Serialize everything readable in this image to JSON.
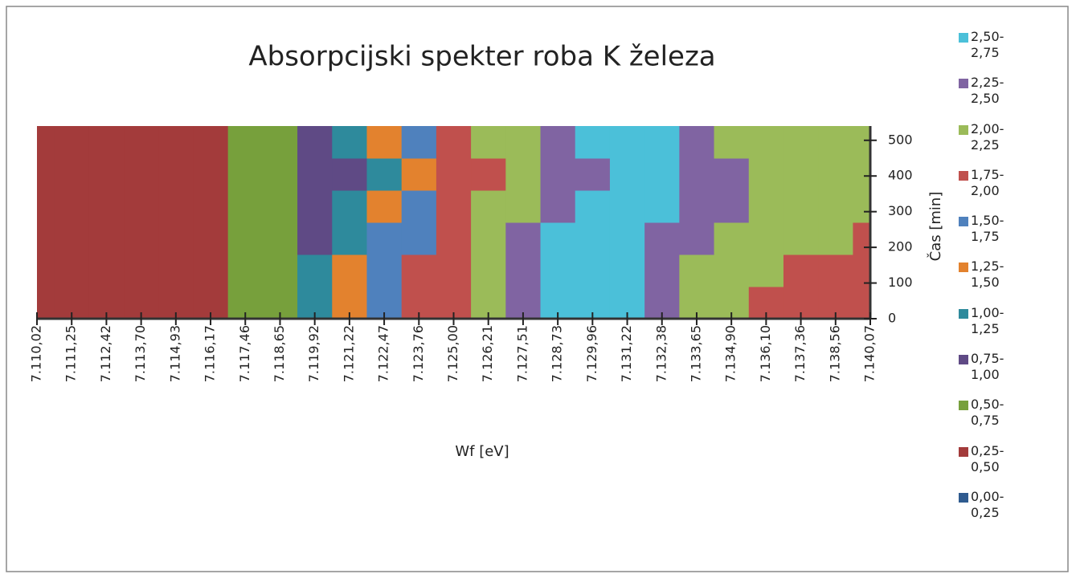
{
  "chart_data": {
    "type": "contour",
    "title": "Absorpcijski spekter roba K železa",
    "x_label": "Wf [eV]",
    "y_label": "Čas [min]",
    "categories": [
      "7.110,02",
      "7.111,25",
      "7.112,42",
      "7.113,70",
      "7.114,93",
      "7.116,17",
      "7.117,46",
      "7.118,65",
      "7.119,92",
      "7.121,22",
      "7.122,47",
      "7.123,76",
      "7.125,00",
      "7.126,21",
      "7.127,51",
      "7.128,73",
      "7.129,96",
      "7.131,22",
      "7.132,38",
      "7.133,65",
      "7.134,90",
      "7.136,10",
      "7.137,36",
      "7.138,56",
      "7.140,07"
    ],
    "ylim": [
      0,
      540
    ],
    "yticks": [
      0,
      100,
      200,
      300,
      400,
      500
    ],
    "y": [
      45,
      135,
      225,
      315,
      405,
      495
    ],
    "z": [
      [
        0.35,
        0.35,
        0.35,
        0.35,
        0.4,
        0.45,
        0.62,
        0.74,
        1.01,
        1.35,
        1.6,
        1.8,
        1.95,
        2.18,
        2.4,
        2.6,
        2.7,
        2.65,
        2.4,
        2.2,
        2.1,
        1.95,
        1.85,
        1.8,
        1.75
      ],
      [
        0.35,
        0.35,
        0.35,
        0.35,
        0.4,
        0.45,
        0.62,
        0.74,
        1.01,
        1.3,
        1.58,
        1.78,
        1.95,
        2.15,
        2.4,
        2.6,
        2.7,
        2.65,
        2.4,
        2.2,
        2.1,
        2.05,
        1.98,
        1.9,
        1.85
      ],
      [
        0.35,
        0.35,
        0.35,
        0.35,
        0.4,
        0.45,
        0.6,
        0.72,
        0.95,
        1.2,
        1.5,
        1.7,
        1.9,
        2.1,
        2.3,
        2.55,
        2.65,
        2.6,
        2.45,
        2.25,
        2.15,
        2.1,
        2.07,
        2.02,
        1.98
      ],
      [
        0.35,
        0.35,
        0.35,
        0.35,
        0.4,
        0.45,
        0.6,
        0.7,
        0.85,
        1.1,
        1.35,
        1.6,
        1.85,
        2.02,
        2.2,
        2.35,
        2.55,
        2.65,
        2.55,
        2.4,
        2.28,
        2.15,
        2.1,
        2.08,
        2.05
      ],
      [
        0.35,
        0.35,
        0.35,
        0.35,
        0.4,
        0.48,
        0.55,
        0.65,
        0.76,
        0.9,
        1.2,
        1.45,
        1.8,
        1.95,
        2.15,
        2.3,
        2.45,
        2.6,
        2.6,
        2.45,
        2.35,
        2.22,
        2.15,
        2.12,
        2.1
      ],
      [
        0.35,
        0.35,
        0.35,
        0.35,
        0.4,
        0.45,
        0.6,
        0.72,
        0.9,
        1.1,
        1.4,
        1.6,
        1.85,
        2.05,
        2.2,
        2.35,
        2.6,
        2.65,
        2.55,
        2.4,
        2.2,
        2.1,
        2.1,
        2.1,
        2.1
      ]
    ],
    "series": [
      {
        "name": "2,50-2,75",
        "color": "#4bc0d9",
        "range": [
          2.5,
          2.75
        ]
      },
      {
        "name": "2,25-2,50",
        "color": "#8064a2",
        "range": [
          2.25,
          2.5
        ]
      },
      {
        "name": "2,00-2,25",
        "color": "#9bbb59",
        "range": [
          2.0,
          2.25
        ]
      },
      {
        "name": "1,75-2,00",
        "color": "#c0504d",
        "range": [
          1.75,
          2.0
        ]
      },
      {
        "name": "1,50-1,75",
        "color": "#4f81bd",
        "range": [
          1.5,
          1.75
        ]
      },
      {
        "name": "1,25-1,50",
        "color": "#e3822e",
        "range": [
          1.25,
          1.5
        ]
      },
      {
        "name": "1,00-1,25",
        "color": "#2e8a9c",
        "range": [
          1.0,
          1.25
        ]
      },
      {
        "name": "0,75-1,00",
        "color": "#5f4a85",
        "range": [
          0.75,
          1.0
        ]
      },
      {
        "name": "0,50-0,75",
        "color": "#77a03c",
        "range": [
          0.5,
          0.75
        ]
      },
      {
        "name": "0,25-0,50",
        "color": "#a33b3b",
        "range": [
          0.25,
          0.5
        ]
      },
      {
        "name": "0,00-0,25",
        "color": "#2f5b8f",
        "range": [
          0.0,
          0.25
        ]
      }
    ]
  }
}
